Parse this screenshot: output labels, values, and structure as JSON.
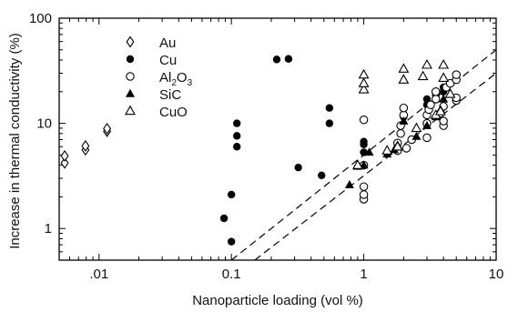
{
  "chart_data": {
    "type": "scatter",
    "title": "",
    "xlabel": "Nanoparticle loading (vol %)",
    "ylabel": "Increase in thermal conductivity (%)",
    "x_scale": "log",
    "y_scale": "log",
    "xlim": [
      0.005,
      10
    ],
    "ylim": [
      0.5,
      100
    ],
    "x_ticks": [
      {
        "value": 0.01,
        "label": ".01"
      },
      {
        "value": 0.1,
        "label": "0.1"
      },
      {
        "value": 1,
        "label": "1"
      },
      {
        "value": 10,
        "label": "10"
      }
    ],
    "y_ticks": [
      {
        "value": 1,
        "label": "1"
      },
      {
        "value": 10,
        "label": "10"
      },
      {
        "value": 100,
        "label": "100"
      }
    ],
    "grid": false,
    "legend_position": "top-left",
    "series": [
      {
        "name": "Au",
        "marker": "diamond-open",
        "points": [
          [
            0.0055,
            4.2
          ],
          [
            0.0055,
            4.9
          ],
          [
            0.0079,
            5.6
          ],
          [
            0.0079,
            6.1
          ],
          [
            0.0115,
            8.4
          ],
          [
            0.0115,
            8.9
          ]
        ]
      },
      {
        "name": "Cu",
        "marker": "circle-filled",
        "points": [
          [
            0.088,
            1.25
          ],
          [
            0.1,
            0.75
          ],
          [
            0.1,
            2.1
          ],
          [
            0.11,
            6.0
          ],
          [
            0.11,
            7.6
          ],
          [
            0.11,
            10.0
          ],
          [
            0.22,
            40.5
          ],
          [
            0.27,
            41.0
          ],
          [
            0.32,
            3.8
          ],
          [
            0.48,
            3.2
          ],
          [
            0.55,
            10.0
          ],
          [
            0.55,
            14.0
          ],
          [
            1.0,
            5.3
          ],
          [
            1.0,
            6.3
          ],
          [
            1.0,
            6.7
          ],
          [
            2.0,
            11.5
          ],
          [
            3.0,
            15.0
          ],
          [
            3.0,
            17.0
          ],
          [
            3.5,
            18.5
          ],
          [
            4.0,
            20.0
          ],
          [
            4.0,
            22.0
          ],
          [
            4.5,
            24.0
          ]
        ]
      },
      {
        "name": "Al2O3",
        "name_main": "Al",
        "name_sub1": "2",
        "name_mid": "O",
        "name_sub2": "3",
        "marker": "circle-open",
        "points": [
          [
            1.0,
            1.9
          ],
          [
            1.0,
            2.1
          ],
          [
            1.0,
            2.5
          ],
          [
            1.0,
            10.8
          ],
          [
            1.0,
            4.0
          ],
          [
            1.8,
            5.5
          ],
          [
            1.8,
            6.5
          ],
          [
            1.9,
            8.0
          ],
          [
            1.9,
            9.5
          ],
          [
            2.0,
            12.0
          ],
          [
            2.0,
            14.0
          ],
          [
            2.1,
            5.8
          ],
          [
            2.3,
            7.0
          ],
          [
            3.0,
            7.3
          ],
          [
            3.0,
            10.0
          ],
          [
            3.0,
            12.0
          ],
          [
            3.1,
            13.5
          ],
          [
            3.2,
            15.0
          ],
          [
            3.5,
            17.0
          ],
          [
            3.5,
            20.0
          ],
          [
            3.8,
            12.5
          ],
          [
            4.0,
            9.5
          ],
          [
            4.0,
            10.5
          ],
          [
            4.0,
            14.5
          ],
          [
            4.2,
            22.0
          ],
          [
            4.5,
            24.0
          ],
          [
            5.0,
            16.5
          ],
          [
            5.0,
            17.5
          ],
          [
            5.0,
            26.0
          ],
          [
            5.0,
            29.0
          ]
        ]
      },
      {
        "name": "SiC",
        "marker": "triangle-filled",
        "points": [
          [
            0.78,
            2.6
          ],
          [
            0.9,
            3.9
          ],
          [
            1.0,
            4.0
          ],
          [
            1.1,
            5.3
          ],
          [
            1.5,
            5.1
          ],
          [
            1.7,
            5.6
          ],
          [
            1.8,
            6.2
          ],
          [
            2.0,
            10.5
          ],
          [
            2.5,
            7.5
          ],
          [
            3.0,
            9.5
          ],
          [
            3.5,
            11.5
          ],
          [
            3.8,
            13.5
          ],
          [
            4.0,
            17.0
          ]
        ]
      },
      {
        "name": "CuO",
        "marker": "triangle-open",
        "points": [
          [
            0.9,
            4.0
          ],
          [
            1.0,
            21.0
          ],
          [
            1.0,
            24.0
          ],
          [
            1.0,
            29.0
          ],
          [
            1.5,
            5.5
          ],
          [
            1.8,
            6.0
          ],
          [
            2.0,
            26.0
          ],
          [
            2.0,
            33.0
          ],
          [
            2.5,
            9.0
          ],
          [
            2.8,
            28.0
          ],
          [
            3.0,
            36.0
          ],
          [
            3.5,
            12.0
          ],
          [
            3.8,
            13.0
          ],
          [
            4.0,
            27.0
          ],
          [
            4.0,
            36.0
          ],
          [
            4.5,
            19.0
          ]
        ]
      }
    ],
    "fit_lines": [
      {
        "style": "dashed",
        "from": [
          0.1,
          0.5
        ],
        "to": [
          10,
          50
        ]
      },
      {
        "style": "dashed",
        "from": [
          0.15,
          0.5
        ],
        "to": [
          10,
          30
        ]
      }
    ]
  }
}
